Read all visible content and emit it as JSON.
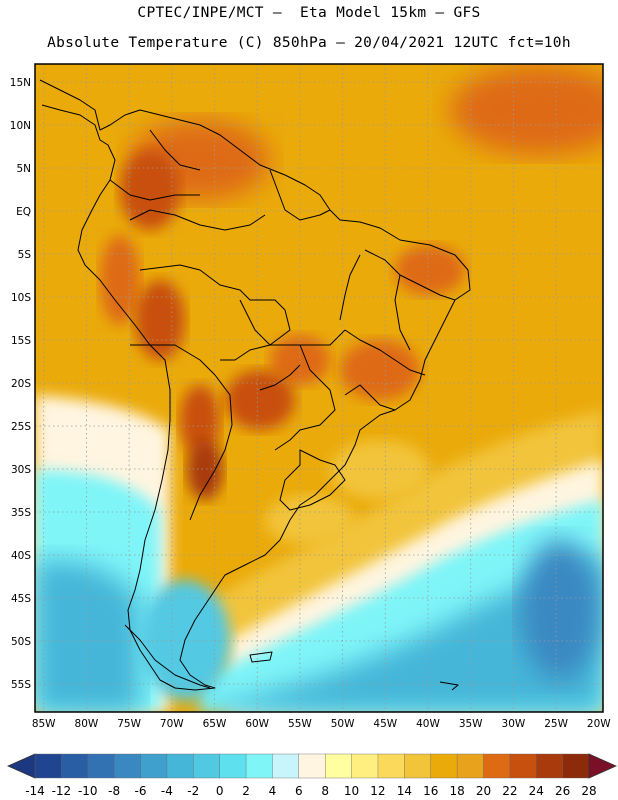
{
  "header": {
    "line1": "CPTEC/INPE/MCT –  Eta Model 15km – GFS",
    "line2": "Absolute Temperature (C) 850hPa – 20/04/2021 12UTC fct=10h"
  },
  "map": {
    "region": "South America",
    "lon_range": [
      -85,
      -20
    ],
    "lat_range": [
      -58,
      17
    ],
    "lat_labels": [
      "15N",
      "10N",
      "5N",
      "EQ",
      "5S",
      "10S",
      "15S",
      "20S",
      "25S",
      "30S",
      "35S",
      "40S",
      "45S",
      "50S",
      "55S"
    ],
    "lon_labels": [
      "85W",
      "80W",
      "75W",
      "70W",
      "65W",
      "60W",
      "55W",
      "50W",
      "45W",
      "40W",
      "35W",
      "30W",
      "25W",
      "20W"
    ],
    "gridlines": "dotted"
  },
  "colorbar": {
    "unit": "C",
    "labels": [
      "-14",
      "-12",
      "-10",
      "-8",
      "-6",
      "-4",
      "-2",
      "0",
      "2",
      "4",
      "6",
      "8",
      "10",
      "12",
      "14",
      "16",
      "18",
      "20",
      "22",
      "24",
      "26",
      "28"
    ],
    "colors": [
      "#1f4591",
      "#2a5ea4",
      "#3272b3",
      "#3a88c2",
      "#40a0cd",
      "#45b6d8",
      "#52c9e3",
      "#5fe0ee",
      "#7ff5f8",
      "#c8f4fb",
      "#fff5e0",
      "#ffff9f",
      "#ffef80",
      "#fbd95a",
      "#f2c43a",
      "#eaaa0a",
      "#e8a21c",
      "#de6a14",
      "#c8500f",
      "#a93a0c",
      "#8c2a0a"
    ],
    "low_color": "#1b3880",
    "high_color": "#7a1028"
  }
}
